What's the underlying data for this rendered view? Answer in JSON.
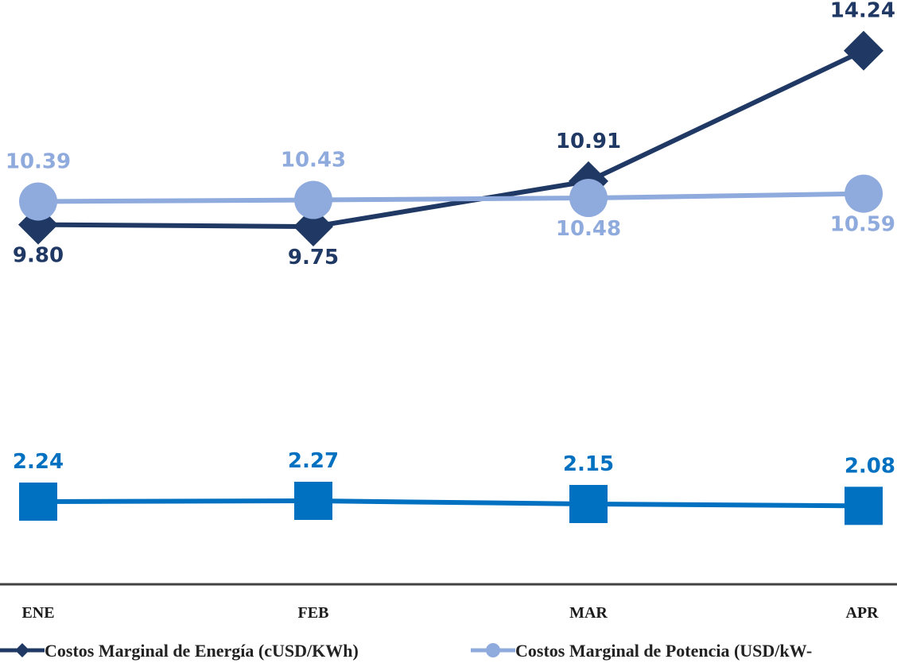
{
  "chart_data": {
    "type": "line",
    "categories": [
      "ENE",
      "FEB",
      "MAR",
      "APR"
    ],
    "series": [
      {
        "name": "Costos Marginal de Energía (cUSD/KWh)",
        "values": [
          9.8,
          9.75,
          10.91,
          14.24
        ],
        "labels": [
          "9.80",
          "9.75",
          "10.91",
          "14.24"
        ],
        "color": "#1f3864",
        "marker": "diamond-icon"
      },
      {
        "name": "Costos Marginal de Potencia  (USD/kW-",
        "values": [
          10.39,
          10.43,
          10.48,
          10.59
        ],
        "labels": [
          "10.39",
          "10.43",
          "10.48",
          "10.59"
        ],
        "color": "#8faadc",
        "marker": "circle-icon"
      },
      {
        "name": "",
        "values": [
          2.24,
          2.27,
          2.15,
          2.08
        ],
        "labels": [
          "2.24",
          "2.27",
          "2.15",
          "2.08"
        ],
        "color": "#0070c0",
        "marker": "square-icon"
      }
    ],
    "legend": "bottom",
    "grid": false
  }
}
